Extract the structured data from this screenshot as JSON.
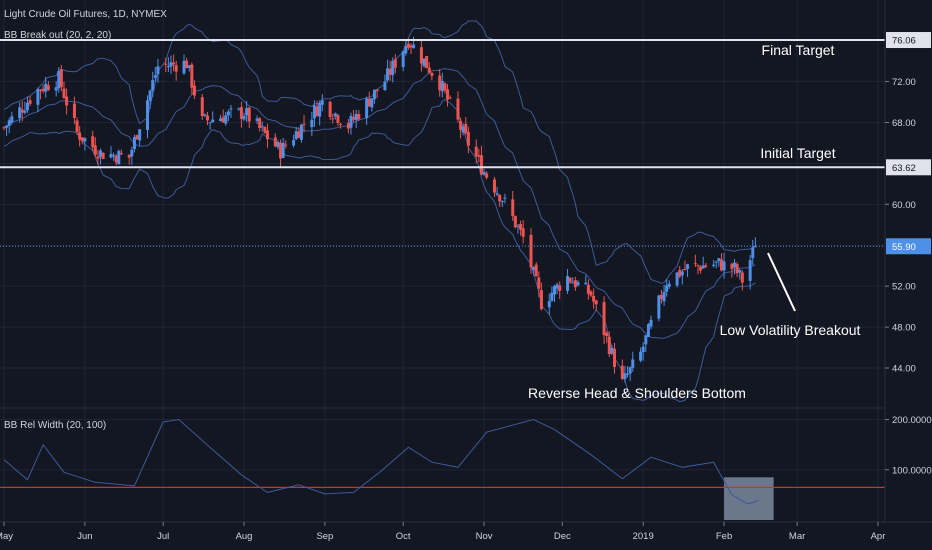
{
  "header": {
    "title": "Light Crude Oil Futures, 1D, NYMEX",
    "indicator_main": "BB Break out (20, 2, 20)",
    "indicator_sub": "BB Rel Width (20, 100)"
  },
  "colors": {
    "background": "#131722",
    "grid": "#1f2433",
    "up": "#4e8fe8",
    "down": "#ef5350",
    "bands": "#3c5a9a",
    "levels": "#e0e3eb",
    "last_price": "#4e8fe8",
    "threshold": "#d32f2f",
    "highlight": "#8a98ad"
  },
  "chart_data": {
    "type": "candlestick",
    "instrument": "Light Crude Oil Futures",
    "timeframe": "1D",
    "exchange": "NYMEX",
    "x_tick_labels": [
      "May",
      "Jun",
      "Jul",
      "Aug",
      "Sep",
      "Oct",
      "Nov",
      "Dec",
      "2019",
      "Feb",
      "Mar",
      "Apr"
    ],
    "x_tick_dates": [
      "2018-05-01",
      "2018-06-01",
      "2018-07-01",
      "2018-08-01",
      "2018-09-01",
      "2018-10-01",
      "2018-11-01",
      "2018-12-01",
      "2019-01-01",
      "2019-02-01",
      "2019-03-01",
      "2019-04-01"
    ],
    "price_axis_ticks": [
      "76.06",
      "72.00",
      "68.00",
      "63.62",
      "60.00",
      "55.90",
      "52.00",
      "48.00",
      "44.00"
    ],
    "price_axis_values": [
      76.06,
      72,
      68,
      63.62,
      60,
      55.9,
      52,
      48,
      44
    ],
    "ylim": [
      41,
      80
    ],
    "horizontal_levels": [
      {
        "label": "Final Target",
        "value": 76.06
      },
      {
        "label": "Initial Target",
        "value": 63.62
      }
    ],
    "last_price": 55.9,
    "annotations": [
      {
        "text": "Low Volatility Breakout",
        "date": "2019-02-13",
        "value": 55.9
      },
      {
        "text": "Reverse Head & Shoulders Bottom",
        "date": "2018-12-24",
        "value": 42.5
      }
    ],
    "price_path": [
      {
        "date": "2018-05-01",
        "value": 67.5
      },
      {
        "date": "2018-05-14",
        "value": 71.2
      },
      {
        "date": "2018-05-22",
        "value": 72.3
      },
      {
        "date": "2018-05-29",
        "value": 67.0
      },
      {
        "date": "2018-06-07",
        "value": 65.0
      },
      {
        "date": "2018-06-18",
        "value": 64.6
      },
      {
        "date": "2018-06-29",
        "value": 73.5
      },
      {
        "date": "2018-07-10",
        "value": 73.8
      },
      {
        "date": "2018-07-16",
        "value": 68.1
      },
      {
        "date": "2018-07-24",
        "value": 68.6
      },
      {
        "date": "2018-08-01",
        "value": 69.0
      },
      {
        "date": "2018-08-15",
        "value": 65.2
      },
      {
        "date": "2018-08-31",
        "value": 70.0
      },
      {
        "date": "2018-09-10",
        "value": 67.7
      },
      {
        "date": "2018-09-24",
        "value": 72.1
      },
      {
        "date": "2018-10-03",
        "value": 76.1
      },
      {
        "date": "2018-10-15",
        "value": 71.9
      },
      {
        "date": "2018-10-24",
        "value": 66.9
      },
      {
        "date": "2018-11-01",
        "value": 63.2
      },
      {
        "date": "2018-11-08",
        "value": 60.6
      },
      {
        "date": "2018-11-16",
        "value": 56.7
      },
      {
        "date": "2018-11-23",
        "value": 50.4
      },
      {
        "date": "2018-12-03",
        "value": 52.9
      },
      {
        "date": "2018-12-12",
        "value": 51.2
      },
      {
        "date": "2018-12-24",
        "value": 42.5
      },
      {
        "date": "2018-12-31",
        "value": 45.4
      },
      {
        "date": "2019-01-10",
        "value": 52.5
      },
      {
        "date": "2019-01-18",
        "value": 53.8
      },
      {
        "date": "2019-01-30",
        "value": 54.2
      },
      {
        "date": "2019-02-05",
        "value": 53.7
      },
      {
        "date": "2019-02-08",
        "value": 52.6
      },
      {
        "date": "2019-02-13",
        "value": 55.9
      }
    ],
    "bb_rel_width": {
      "label": "BB Rel Width (20, 100)",
      "axis_ticks": [
        "200.0000",
        "100.0000"
      ],
      "axis_values": [
        200,
        100
      ],
      "ylim": [
        0,
        215
      ],
      "threshold": 65,
      "path": [
        {
          "date": "2018-05-01",
          "value": 120
        },
        {
          "date": "2018-05-10",
          "value": 80
        },
        {
          "date": "2018-05-16",
          "value": 150
        },
        {
          "date": "2018-05-24",
          "value": 95
        },
        {
          "date": "2018-06-05",
          "value": 75
        },
        {
          "date": "2018-06-20",
          "value": 68
        },
        {
          "date": "2018-07-01",
          "value": 195
        },
        {
          "date": "2018-07-07",
          "value": 200
        },
        {
          "date": "2018-07-20",
          "value": 140
        },
        {
          "date": "2018-07-31",
          "value": 90
        },
        {
          "date": "2018-08-10",
          "value": 55
        },
        {
          "date": "2018-08-22",
          "value": 70
        },
        {
          "date": "2018-09-01",
          "value": 52
        },
        {
          "date": "2018-09-12",
          "value": 55
        },
        {
          "date": "2018-09-22",
          "value": 95
        },
        {
          "date": "2018-10-03",
          "value": 145
        },
        {
          "date": "2018-10-12",
          "value": 115
        },
        {
          "date": "2018-10-22",
          "value": 105
        },
        {
          "date": "2018-11-02",
          "value": 175
        },
        {
          "date": "2018-11-20",
          "value": 200
        },
        {
          "date": "2018-11-28",
          "value": 180
        },
        {
          "date": "2018-12-12",
          "value": 130
        },
        {
          "date": "2018-12-24",
          "value": 82
        },
        {
          "date": "2019-01-04",
          "value": 125
        },
        {
          "date": "2019-01-16",
          "value": 105
        },
        {
          "date": "2019-01-28",
          "value": 115
        },
        {
          "date": "2019-02-04",
          "value": 50
        },
        {
          "date": "2019-02-10",
          "value": 32
        },
        {
          "date": "2019-02-14",
          "value": 38
        }
      ]
    },
    "highlight_range": {
      "from": "2019-02-01",
      "to": "2019-02-20"
    }
  },
  "annotations_text": {
    "final_target": "Final Target",
    "initial_target": "Initial Target",
    "breakout": "Low Volatility Breakout",
    "bottom": "Reverse Head & Shoulders Bottom"
  }
}
